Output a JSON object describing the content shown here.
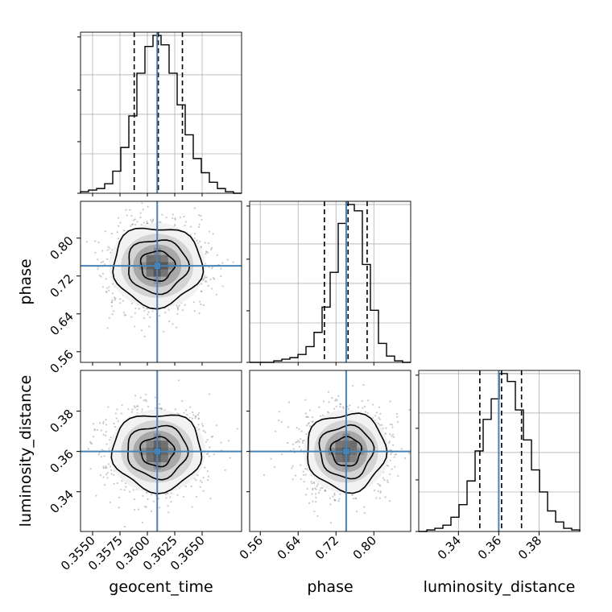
{
  "chart_data": {
    "type": "corner",
    "parameters": [
      "geocent_time",
      "phase",
      "luminosity_distance"
    ],
    "truth": {
      "geocent_time": 0.3609,
      "phase": 0.7415,
      "luminosity_distance": 0.36
    },
    "colors": {
      "truth": "#4682b4",
      "hist": "#000000",
      "points": "#888888",
      "grid": "#b0b0b0"
    },
    "grid": true,
    "ranges": {
      "geocent_time": [
        0.3539,
        0.3686
      ],
      "phase": [
        0.5375,
        0.8778
      ],
      "luminosity_distance": [
        0.3203,
        0.4002
      ]
    },
    "ticks": {
      "geocent_time": {
        "values": [
          0.355,
          0.3575,
          0.36,
          0.3625,
          0.365
        ],
        "labels": [
          "0.3550",
          "0.3575",
          "0.3600",
          "0.3625",
          "0.3650"
        ]
      },
      "phase": {
        "values": [
          0.56,
          0.64,
          0.72,
          0.8
        ],
        "labels": [
          "0.56",
          "0.64",
          "0.72",
          "0.80"
        ]
      },
      "luminosity_distance": {
        "values": [
          0.34,
          0.36,
          0.38
        ],
        "labels": [
          "0.34",
          "0.36",
          "0.38"
        ]
      }
    },
    "quantiles": {
      "geocent_time": [
        0.3588,
        0.361,
        0.3632
      ],
      "phase": [
        0.6955,
        0.7455,
        0.7858
      ],
      "luminosity_distance": [
        0.3506,
        0.3614,
        0.3713
      ]
    },
    "histograms": {
      "geocent_time": [
        1,
        2,
        3,
        6,
        14,
        29,
        49,
        76,
        93,
        100,
        94,
        76,
        56,
        37,
        22,
        13,
        7,
        3,
        1,
        0
      ],
      "phase": [
        0,
        0,
        0,
        1,
        2,
        3,
        5,
        10,
        19,
        35,
        57,
        88,
        100,
        96,
        62,
        33,
        12,
        4,
        1,
        0
      ],
      "luminosity_distance": [
        0,
        1,
        2,
        4,
        9,
        17,
        32,
        51,
        71,
        84,
        100,
        95,
        77,
        58,
        39,
        25,
        13,
        6,
        2,
        1
      ]
    },
    "histogram_max_tick": 100,
    "contour_levels": [
      0.5,
      1.0,
      1.5,
      2.0
    ],
    "scatter_points": 1400
  }
}
